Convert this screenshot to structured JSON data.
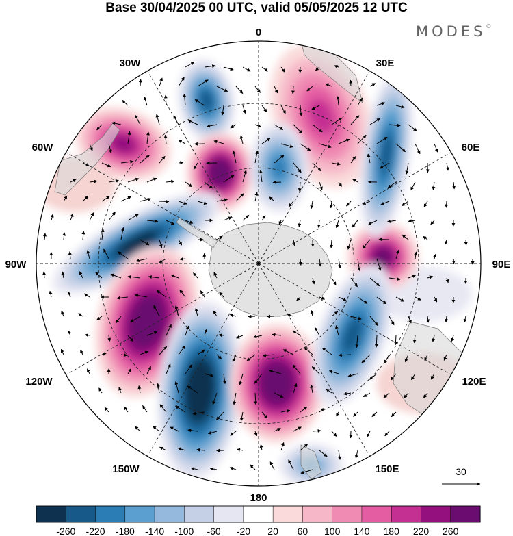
{
  "title": "Base 30/04/2025 00 UTC, valid 05/05/2025 12 UTC",
  "brand": "MODES",
  "brand_mark": "©",
  "map": {
    "projection": "south-polar-stereographic",
    "longitude_labels": {
      "lon_0": "0",
      "lon_30e": "30E",
      "lon_60e": "60E",
      "lon_90e": "90E",
      "lon_120e": "120E",
      "lon_150e": "150E",
      "lon_180": "180",
      "lon_150w": "150W",
      "lon_120w": "120W",
      "lon_90w": "90W",
      "lon_60w": "60W",
      "lon_30w": "30W"
    },
    "vector_reference": {
      "label": "30"
    },
    "anomaly_features": [
      {
        "name": "low-1",
        "sign": "negative",
        "peak": -180
      },
      {
        "name": "high-1",
        "sign": "positive",
        "peak": 140
      },
      {
        "name": "high-2",
        "sign": "positive",
        "peak": 260
      },
      {
        "name": "low-2",
        "sign": "negative",
        "peak": -140
      },
      {
        "name": "low-3",
        "sign": "negative",
        "peak": -220
      },
      {
        "name": "high-3",
        "sign": "positive",
        "peak": 220
      },
      {
        "name": "low-4",
        "sign": "negative",
        "peak": -180
      },
      {
        "name": "high-4",
        "sign": "positive",
        "peak": 180
      },
      {
        "name": "high-5",
        "sign": "positive",
        "peak": 260
      },
      {
        "name": "low-5",
        "sign": "negative",
        "peak": -260
      },
      {
        "name": "high-6",
        "sign": "positive",
        "peak": 260
      },
      {
        "name": "low-6",
        "sign": "negative",
        "peak": -100
      },
      {
        "name": "low-7",
        "sign": "negative",
        "peak": -180
      }
    ]
  },
  "colorbar": {
    "ticks": [
      "-260",
      "-220",
      "-180",
      "-140",
      "-100",
      "-60",
      "-20",
      "20",
      "60",
      "100",
      "140",
      "180",
      "220",
      "260"
    ],
    "colors": [
      "#0e3150",
      "#175a8a",
      "#2a7db5",
      "#5a9fcf",
      "#94b9dc",
      "#c5d0e6",
      "#e6e6f2",
      "#ffffff",
      "#fadada",
      "#f6b8c8",
      "#f08cb4",
      "#e45da3",
      "#c42f92",
      "#94107e",
      "#6b0d70"
    ]
  }
}
